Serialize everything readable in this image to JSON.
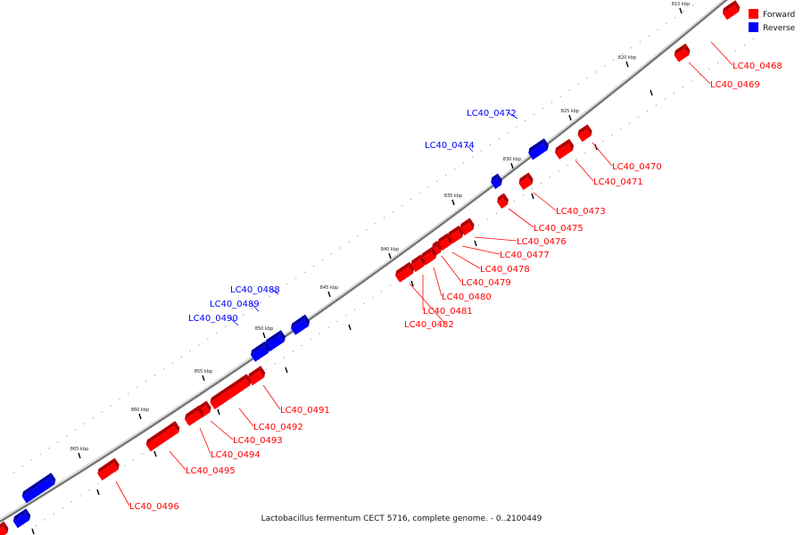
{
  "title": "Lactobacillus fermentum CECT 5716, complete genome. - 0..2100449",
  "legend": [
    {
      "label": "Forward",
      "color": "#ff0000"
    },
    {
      "label": "Reverse",
      "color": "#0000ff"
    }
  ],
  "colors": {
    "forward": "#ff0000",
    "reverse": "#0000ff",
    "backbone": "#777777"
  },
  "ticks": [
    "815 kbp",
    "820 kbp",
    "825 kbp",
    "830 kbp",
    "835 kbp",
    "840 kbp",
    "845 kbp",
    "850 kbp",
    "855 kbp",
    "860 kbp",
    "865 kbp"
  ],
  "genes": [
    {
      "label": "LC40_0468",
      "strand": "forward"
    },
    {
      "label": "LC40_0469",
      "strand": "forward"
    },
    {
      "label": "LC40_0470",
      "strand": "forward"
    },
    {
      "label": "LC40_0471",
      "strand": "forward"
    },
    {
      "label": "LC40_0472",
      "strand": "reverse"
    },
    {
      "label": "LC40_0473",
      "strand": "forward"
    },
    {
      "label": "LC40_0474",
      "strand": "reverse"
    },
    {
      "label": "LC40_0475",
      "strand": "forward"
    },
    {
      "label": "LC40_0476",
      "strand": "forward"
    },
    {
      "label": "LC40_0477",
      "strand": "forward"
    },
    {
      "label": "LC40_0478",
      "strand": "forward"
    },
    {
      "label": "LC40_0479",
      "strand": "forward"
    },
    {
      "label": "LC40_0480",
      "strand": "forward"
    },
    {
      "label": "LC40_0481",
      "strand": "forward"
    },
    {
      "label": "LC40_0482",
      "strand": "forward"
    },
    {
      "label": "LC40_0488",
      "strand": "reverse"
    },
    {
      "label": "LC40_0489",
      "strand": "reverse"
    },
    {
      "label": "LC40_0490",
      "strand": "reverse"
    },
    {
      "label": "LC40_0491",
      "strand": "forward"
    },
    {
      "label": "LC40_0492",
      "strand": "forward"
    },
    {
      "label": "LC40_0493",
      "strand": "forward"
    },
    {
      "label": "LC40_0494",
      "strand": "forward"
    },
    {
      "label": "LC40_0495",
      "strand": "forward"
    },
    {
      "label": "LC40_0496",
      "strand": "forward"
    }
  ]
}
